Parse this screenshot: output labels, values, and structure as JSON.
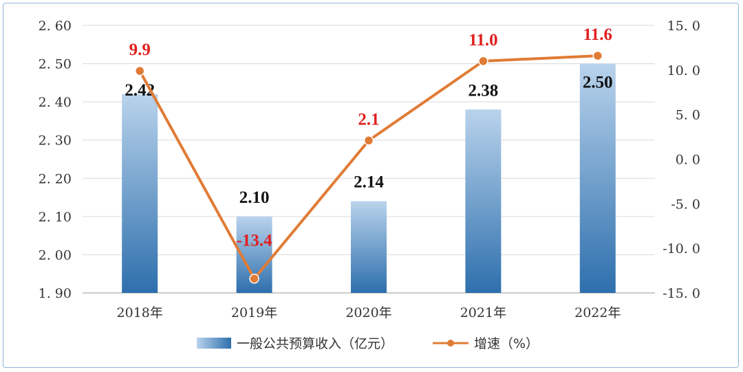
{
  "chart_data": {
    "type": "bar+line",
    "categories": [
      "2018年",
      "2019年",
      "2020年",
      "2021年",
      "2022年"
    ],
    "series": [
      {
        "name": "一般公共预算收入（亿元）",
        "type": "bar",
        "axis": "left",
        "values": [
          2.42,
          2.1,
          2.14,
          2.38,
          2.5
        ],
        "labels": [
          "2.42",
          "2.10",
          "2.14",
          "2.38",
          "2.50"
        ]
      },
      {
        "name": "增速（%）",
        "type": "line",
        "axis": "right",
        "values": [
          9.9,
          -13.4,
          2.1,
          11.0,
          11.6
        ],
        "labels": [
          "9.9",
          "-13.4",
          "2.1",
          "11.0",
          "11.6"
        ]
      }
    ],
    "y_left": {
      "range": [
        1.9,
        2.6
      ],
      "ticks": [
        "1. 90",
        "2. 00",
        "2. 10",
        "2. 20",
        "2. 30",
        "2. 40",
        "2. 50",
        "2. 60"
      ]
    },
    "y_right": {
      "range": [
        -15.0,
        15.0
      ],
      "ticks": [
        "-15. 0",
        "-10. 0",
        "-5. 0",
        "0. 0",
        "5. 0",
        "10. 0",
        "15. 0"
      ]
    },
    "grid": true,
    "legend_position": "bottom",
    "colors": {
      "bar_top": "#b9d3ec",
      "bar_bottom": "#2e6fad",
      "line": "#e07b35",
      "line_label": "#e02020",
      "grid": "#d9d9d9",
      "frame": "#8fb3d9"
    }
  }
}
